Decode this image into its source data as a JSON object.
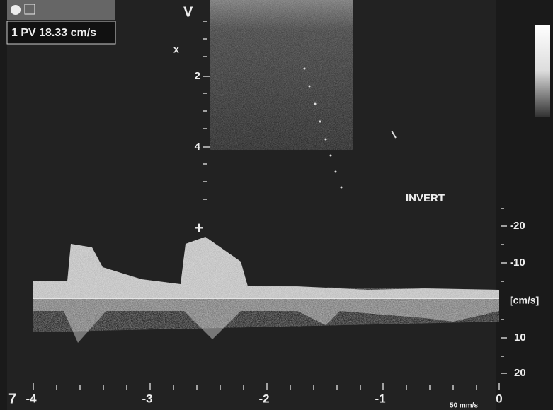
{
  "measurement": {
    "label": "1 PV 18.33 cm/s"
  },
  "depth_scale": {
    "marker": "V",
    "focus": "x",
    "labels": [
      "2",
      "4"
    ]
  },
  "mode": "INVERT",
  "velocity_scale": {
    "labels": [
      "-20",
      "-10",
      "[cm/s]",
      "10",
      "20"
    ]
  },
  "time_axis": {
    "labels": [
      "-4",
      "-3",
      "-2",
      "-1",
      "0"
    ],
    "frame": "7",
    "sweep": "50 mm/s"
  },
  "cursor": "+"
}
